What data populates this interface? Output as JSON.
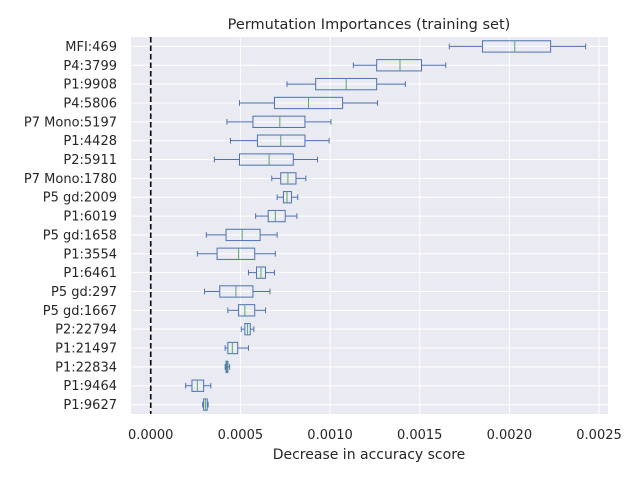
{
  "chart_data": {
    "type": "boxplot",
    "orientation": "horizontal",
    "title": "Permutation Importances (training set)",
    "xlabel": "Decrease in accuracy score",
    "ylabel": "",
    "xlim": [
      -0.00011,
      0.00255
    ],
    "x_ticks": [
      0.0,
      0.0005,
      0.001,
      0.0015,
      0.002,
      0.0025
    ],
    "x_tick_labels": [
      "0.0000",
      "0.0005",
      "0.0010",
      "0.0015",
      "0.0020",
      "0.0025"
    ],
    "grid": true,
    "reference_line": {
      "x": 0.0,
      "style": "dashed",
      "color": "#000000"
    },
    "colors": {
      "background": "#eaeaf2",
      "grid": "#ffffff",
      "box": "#4c72b0",
      "median": "#55a868"
    },
    "categories": [
      "MFI:469",
      "P4:3799",
      "P1:9908",
      "P4:5806",
      "P7 Mono:5197",
      "P1:4428",
      "P2:5911",
      "P7 Mono:1780",
      "P5 gd:2009",
      "P1:6019",
      "P5 gd:1658",
      "P1:3554",
      "P1:6461",
      "P5 gd:297",
      "P5 gd:1667",
      "P2:22794",
      "P1:21497",
      "P1:22834",
      "P1:9464",
      "P1:9627"
    ],
    "boxes": [
      {
        "whislo": 0.001665,
        "q1": 0.00185,
        "med": 0.00203,
        "q3": 0.00223,
        "whishi": 0.002425
      },
      {
        "whislo": 0.00113,
        "q1": 0.00126,
        "med": 0.00139,
        "q3": 0.00151,
        "whishi": 0.001645
      },
      {
        "whislo": 0.00076,
        "q1": 0.00092,
        "med": 0.00109,
        "q3": 0.00126,
        "whishi": 0.00142
      },
      {
        "whislo": 0.000495,
        "q1": 0.00069,
        "med": 0.00088,
        "q3": 0.00107,
        "whishi": 0.001265
      },
      {
        "whislo": 0.000425,
        "q1": 0.00057,
        "med": 0.00072,
        "q3": 0.00086,
        "whishi": 0.001005
      },
      {
        "whislo": 0.000445,
        "q1": 0.000595,
        "med": 0.000725,
        "q3": 0.00086,
        "whishi": 0.000995
      },
      {
        "whislo": 0.000355,
        "q1": 0.000495,
        "med": 0.00066,
        "q3": 0.000795,
        "whishi": 0.00093
      },
      {
        "whislo": 0.000675,
        "q1": 0.000725,
        "med": 0.000765,
        "q3": 0.00081,
        "whishi": 0.000865
      },
      {
        "whislo": 0.000705,
        "q1": 0.00074,
        "med": 0.00076,
        "q3": 0.000785,
        "whishi": 0.00082
      },
      {
        "whislo": 0.000585,
        "q1": 0.000655,
        "med": 0.000695,
        "q3": 0.00075,
        "whishi": 0.000815
      },
      {
        "whislo": 0.00031,
        "q1": 0.00042,
        "med": 0.00051,
        "q3": 0.00061,
        "whishi": 0.000705
      },
      {
        "whislo": 0.00026,
        "q1": 0.00037,
        "med": 0.00049,
        "q3": 0.00058,
        "whishi": 0.000695
      },
      {
        "whislo": 0.000545,
        "q1": 0.00059,
        "med": 0.000615,
        "q3": 0.00064,
        "whishi": 0.00069
      },
      {
        "whislo": 0.0003,
        "q1": 0.000385,
        "med": 0.000475,
        "q3": 0.00057,
        "whishi": 0.000665
      },
      {
        "whislo": 0.00043,
        "q1": 0.00049,
        "med": 0.000525,
        "q3": 0.00058,
        "whishi": 0.00064
      },
      {
        "whislo": 0.000505,
        "q1": 0.000525,
        "med": 0.00054,
        "q3": 0.000555,
        "whishi": 0.000575
      },
      {
        "whislo": 0.000415,
        "q1": 0.00043,
        "med": 0.000455,
        "q3": 0.000485,
        "whishi": 0.000545
      },
      {
        "whislo": 0.000415,
        "q1": 0.00042,
        "med": 0.000425,
        "q3": 0.00043,
        "whishi": 0.00044
      },
      {
        "whislo": 0.000195,
        "q1": 0.00023,
        "med": 0.00026,
        "q3": 0.000295,
        "whishi": 0.000335
      },
      {
        "whislo": 0.00029,
        "q1": 0.000295,
        "med": 0.000305,
        "q3": 0.000315,
        "whishi": 0.00032
      }
    ]
  }
}
